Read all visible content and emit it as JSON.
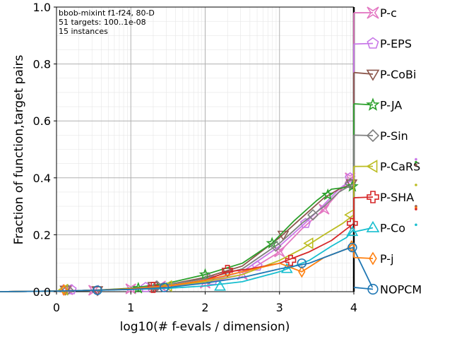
{
  "chart_data": {
    "type": "line",
    "title": "",
    "info_lines": [
      "bbob-mixint f1-f24, 80-D",
      "51 targets: 100..1e-08",
      "15 instances"
    ],
    "xlabel": "log10(# f-evals / dimension)",
    "ylabel": "Fraction of function,target pairs",
    "xlim": [
      0,
      4
    ],
    "ylim": [
      0,
      1
    ],
    "xticks": [
      "0",
      "1",
      "2",
      "3",
      "4"
    ],
    "yticks": [
      "0.0",
      "0.2",
      "0.4",
      "0.6",
      "0.8",
      "1.0"
    ],
    "grid": true,
    "legend_position": "right",
    "series": [
      {
        "name": "P-c",
        "color": "#e377c2",
        "marker": "x",
        "points": [
          [
            -0.8,
            0.0
          ],
          [
            0,
            0.002
          ],
          [
            0.5,
            0.005
          ],
          [
            1.0,
            0.01
          ],
          [
            1.5,
            0.02
          ],
          [
            2.0,
            0.03
          ],
          [
            2.5,
            0.06
          ],
          [
            3.0,
            0.14
          ],
          [
            3.3,
            0.22
          ],
          [
            3.6,
            0.29
          ],
          [
            3.8,
            0.35
          ],
          [
            4.0,
            0.41
          ],
          [
            4.0,
            0.98
          ]
        ],
        "marker_points": [
          [
            0.15,
            0.007
          ],
          [
            0.5,
            0.005
          ],
          [
            1.0,
            0.01
          ],
          [
            1.4,
            0.02
          ],
          [
            2.0,
            0.03
          ],
          [
            2.5,
            0.06
          ],
          [
            3.0,
            0.14
          ],
          [
            3.6,
            0.29
          ],
          [
            3.95,
            0.4
          ]
        ],
        "end": 0.98
      },
      {
        "name": "P-EPS",
        "color": "#c878e8",
        "marker": "pentagon",
        "points": [
          [
            -0.8,
            0.0
          ],
          [
            0,
            0.002
          ],
          [
            0.5,
            0.005
          ],
          [
            1.0,
            0.01
          ],
          [
            1.5,
            0.02
          ],
          [
            2.0,
            0.035
          ],
          [
            2.5,
            0.07
          ],
          [
            3.0,
            0.16
          ],
          [
            3.3,
            0.23
          ],
          [
            3.5,
            0.28
          ],
          [
            3.8,
            0.36
          ],
          [
            4.0,
            0.4
          ],
          [
            4.0,
            0.87
          ]
        ],
        "marker_points": [
          [
            0.2,
            0.007
          ],
          [
            1.2,
            0.015
          ],
          [
            2.1,
            0.04
          ],
          [
            2.7,
            0.09
          ],
          [
            3.35,
            0.24
          ],
          [
            3.95,
            0.4
          ]
        ],
        "end": 0.87
      },
      {
        "name": "P-CoBi",
        "color": "#8c564b",
        "marker": "triangle-down",
        "points": [
          [
            -0.8,
            0.0
          ],
          [
            0,
            0.002
          ],
          [
            0.5,
            0.005
          ],
          [
            1.0,
            0.01
          ],
          [
            1.5,
            0.025
          ],
          [
            2.0,
            0.05
          ],
          [
            2.5,
            0.09
          ],
          [
            3.0,
            0.19
          ],
          [
            3.3,
            0.26
          ],
          [
            3.6,
            0.33
          ],
          [
            3.8,
            0.36
          ],
          [
            4.0,
            0.38
          ],
          [
            4.0,
            0.77
          ]
        ],
        "marker_points": [
          [
            0.12,
            0.007
          ],
          [
            0.55,
            0.005
          ],
          [
            1.3,
            0.02
          ],
          [
            2.3,
            0.07
          ],
          [
            3.05,
            0.2
          ],
          [
            3.97,
            0.38
          ]
        ],
        "end": 0.77
      },
      {
        "name": "P-JA",
        "color": "#2ca02c",
        "marker": "star",
        "points": [
          [
            -0.8,
            0.0
          ],
          [
            0,
            0.002
          ],
          [
            0.5,
            0.005
          ],
          [
            1.0,
            0.012
          ],
          [
            1.5,
            0.03
          ],
          [
            2.0,
            0.06
          ],
          [
            2.5,
            0.1
          ],
          [
            2.9,
            0.17
          ],
          [
            3.2,
            0.25
          ],
          [
            3.5,
            0.32
          ],
          [
            3.7,
            0.36
          ],
          [
            4.0,
            0.37
          ],
          [
            4.0,
            0.66
          ]
        ],
        "marker_points": [
          [
            1.1,
            0.012
          ],
          [
            2.0,
            0.06
          ],
          [
            2.9,
            0.17
          ],
          [
            3.65,
            0.34
          ],
          [
            3.98,
            0.37
          ]
        ],
        "end": 0.66
      },
      {
        "name": "P-Sin",
        "color": "#7f7f7f",
        "marker": "diamond",
        "points": [
          [
            -0.8,
            0.0
          ],
          [
            0,
            0.002
          ],
          [
            0.5,
            0.005
          ],
          [
            1.0,
            0.01
          ],
          [
            1.5,
            0.025
          ],
          [
            2.0,
            0.045
          ],
          [
            2.5,
            0.08
          ],
          [
            3.0,
            0.17
          ],
          [
            3.3,
            0.24
          ],
          [
            3.6,
            0.3
          ],
          [
            3.8,
            0.35
          ],
          [
            4.0,
            0.38
          ],
          [
            4.0,
            0.55
          ]
        ],
        "marker_points": [
          [
            0.15,
            0.007
          ],
          [
            1.35,
            0.02
          ],
          [
            2.05,
            0.045
          ],
          [
            2.95,
            0.16
          ],
          [
            3.45,
            0.27
          ],
          [
            3.95,
            0.38
          ]
        ],
        "end": 0.55
      },
      {
        "name": "P-CaRS",
        "color": "#bcbd22",
        "marker": "triangle-left",
        "points": [
          [
            -0.8,
            0.0
          ],
          [
            0,
            0.002
          ],
          [
            0.5,
            0.005
          ],
          [
            1.0,
            0.01
          ],
          [
            1.5,
            0.02
          ],
          [
            2.0,
            0.035
          ],
          [
            2.5,
            0.06
          ],
          [
            3.0,
            0.11
          ],
          [
            3.3,
            0.15
          ],
          [
            3.6,
            0.2
          ],
          [
            3.85,
            0.24
          ],
          [
            4.0,
            0.27
          ],
          [
            4.0,
            0.44
          ]
        ],
        "marker_points": [
          [
            0.1,
            0.007
          ],
          [
            1.5,
            0.02
          ],
          [
            3.4,
            0.17
          ],
          [
            3.95,
            0.27
          ]
        ],
        "end": 0.44
      },
      {
        "name": "P-SHA",
        "color": "#d62728",
        "marker": "plus",
        "points": [
          [
            -0.8,
            0.0
          ],
          [
            0,
            0.002
          ],
          [
            0.5,
            0.005
          ],
          [
            1.0,
            0.01
          ],
          [
            1.5,
            0.02
          ],
          [
            2.0,
            0.04
          ],
          [
            2.3,
            0.07
          ],
          [
            2.6,
            0.08
          ],
          [
            3.0,
            0.1
          ],
          [
            3.4,
            0.14
          ],
          [
            3.7,
            0.18
          ],
          [
            3.9,
            0.22
          ],
          [
            4.0,
            0.24
          ],
          [
            4.0,
            0.33
          ]
        ],
        "marker_points": [
          [
            1.3,
            0.015
          ],
          [
            2.3,
            0.075
          ],
          [
            3.15,
            0.11
          ],
          [
            3.98,
            0.24
          ]
        ],
        "end": 0.33
      },
      {
        "name": "P-Co",
        "color": "#17becf",
        "marker": "triangle-up",
        "points": [
          [
            -0.8,
            0.0
          ],
          [
            0,
            0.002
          ],
          [
            0.5,
            0.005
          ],
          [
            1.0,
            0.008
          ],
          [
            1.5,
            0.012
          ],
          [
            2.0,
            0.02
          ],
          [
            2.5,
            0.035
          ],
          [
            3.0,
            0.07
          ],
          [
            3.4,
            0.11
          ],
          [
            3.7,
            0.16
          ],
          [
            3.9,
            0.19
          ],
          [
            4.0,
            0.22
          ],
          [
            4.0,
            0.21
          ]
        ],
        "marker_points": [
          [
            2.2,
            0.018
          ],
          [
            3.1,
            0.08
          ],
          [
            3.98,
            0.21
          ]
        ],
        "end": 0.21
      },
      {
        "name": "P-j",
        "color": "#ff7f0e",
        "marker": "diamond-thin",
        "points": [
          [
            -0.8,
            0.0
          ],
          [
            0,
            0.002
          ],
          [
            0.5,
            0.005
          ],
          [
            1.0,
            0.01
          ],
          [
            1.5,
            0.02
          ],
          [
            2.0,
            0.04
          ],
          [
            2.5,
            0.07
          ],
          [
            3.0,
            0.1
          ],
          [
            3.3,
            0.07
          ],
          [
            3.6,
            0.12
          ],
          [
            3.9,
            0.15
          ],
          [
            4.0,
            0.17
          ],
          [
            4.0,
            0.12
          ]
        ],
        "marker_points": [
          [
            0.1,
            0.006
          ],
          [
            3.3,
            0.07
          ],
          [
            3.97,
            0.16
          ]
        ],
        "end": 0.12
      },
      {
        "name": "NOPCM",
        "color": "#1f77b4",
        "marker": "circle",
        "points": [
          [
            -0.8,
            0.0
          ],
          [
            0,
            0.002
          ],
          [
            0.5,
            0.005
          ],
          [
            1.0,
            0.008
          ],
          [
            1.5,
            0.015
          ],
          [
            2.0,
            0.03
          ],
          [
            2.5,
            0.05
          ],
          [
            3.0,
            0.08
          ],
          [
            3.4,
            0.1
          ],
          [
            3.7,
            0.13
          ],
          [
            3.9,
            0.15
          ],
          [
            4.0,
            0.155
          ],
          [
            4.0,
            0.15
          ],
          [
            4.25,
            0.015
          ]
        ],
        "marker_points": [
          [
            0.55,
            0.005
          ],
          [
            1.45,
            0.015
          ],
          [
            3.3,
            0.1
          ],
          [
            3.98,
            0.155
          ]
        ],
        "end": 0.015
      }
    ],
    "side_dots": [
      {
        "color": "#c878e8",
        "y": 0.465
      },
      {
        "color": "#2ca02c",
        "y": 0.455
      },
      {
        "color": "#8c564b",
        "y": 0.445
      },
      {
        "color": "#bcbd22",
        "y": 0.375
      },
      {
        "color": "#8c564b",
        "y": 0.3
      },
      {
        "color": "#ff7f0e",
        "y": 0.295
      },
      {
        "color": "#d62728",
        "y": 0.29
      },
      {
        "color": "#17becf",
        "y": 0.235
      }
    ]
  }
}
